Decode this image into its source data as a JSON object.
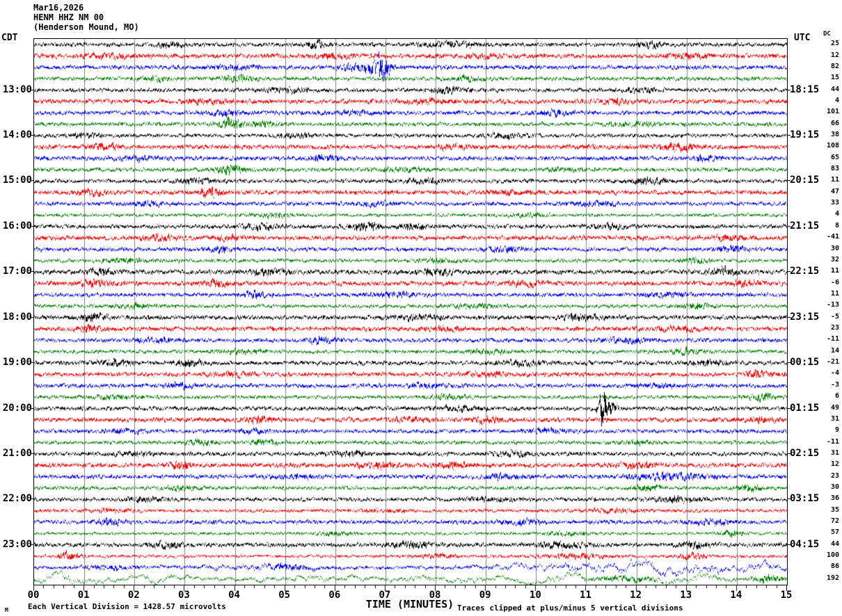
{
  "header": {
    "date": "Mar16,2026",
    "station": "HENM HHZ NM 00",
    "location": "(Henderson Mound, MO)"
  },
  "axes": {
    "left_tz": "CDT",
    "right_tz": "UTC",
    "dc_label": "DC",
    "x_title": "TIME (MINUTES)",
    "x_ticks": [
      "00",
      "01",
      "02",
      "03",
      "04",
      "05",
      "06",
      "07",
      "08",
      "09",
      "10",
      "11",
      "12",
      "13",
      "14",
      "15"
    ]
  },
  "footer": {
    "scale_note": "Each Vertical Division = 1428.57 microvolts",
    "clip_note": "Traces clipped at plus/minus 5 vertical divisions",
    "watermark": "M"
  },
  "left_labels": [
    {
      "row": 4,
      "text": "13:00"
    },
    {
      "row": 8,
      "text": "14:00"
    },
    {
      "row": 12,
      "text": "15:00"
    },
    {
      "row": 16,
      "text": "16:00"
    },
    {
      "row": 20,
      "text": "17:00"
    },
    {
      "row": 24,
      "text": "18:00"
    },
    {
      "row": 28,
      "text": "19:00"
    },
    {
      "row": 32,
      "text": "20:00"
    },
    {
      "row": 36,
      "text": "21:00"
    },
    {
      "row": 40,
      "text": "22:00"
    },
    {
      "row": 44,
      "text": "23:00"
    }
  ],
  "right_labels": [
    {
      "row": 4,
      "text": "18:15"
    },
    {
      "row": 8,
      "text": "19:15"
    },
    {
      "row": 12,
      "text": "20:15"
    },
    {
      "row": 16,
      "text": "21:15"
    },
    {
      "row": 20,
      "text": "22:15"
    },
    {
      "row": 24,
      "text": "23:15"
    },
    {
      "row": 28,
      "text": "00:15"
    },
    {
      "row": 32,
      "text": "01:15"
    },
    {
      "row": 36,
      "text": "02:15"
    },
    {
      "row": 40,
      "text": "03:15"
    },
    {
      "row": 44,
      "text": "04:15"
    }
  ],
  "colors": {
    "trace_cycle": [
      "#000000",
      "#ff0000",
      "#0000ff",
      "#007f00"
    ],
    "grid": "#808080",
    "frame": "#000000",
    "background": "#ffffff"
  },
  "chart_data": {
    "type": "line",
    "subtype": "helicorder-seismogram",
    "title": "HENM HHZ NM 00 (Henderson Mound, MO) Mar16,2026",
    "xlabel": "TIME (MINUTES)",
    "x_range_minutes": [
      0,
      15
    ],
    "minutes_per_row": 15,
    "rows_count": 48,
    "grid": "vertical lines at each minute",
    "legend_position": "none",
    "dc_offsets": [
      25,
      12,
      82,
      15,
      44,
      4,
      101,
      66,
      38,
      108,
      65,
      83,
      11,
      47,
      33,
      4,
      8,
      -41,
      30,
      32,
      11,
      -6,
      11,
      -13,
      -5,
      23,
      -11,
      14,
      -21,
      -4,
      -3,
      6,
      49,
      31,
      9,
      -11,
      31,
      12,
      23,
      30,
      36,
      35,
      72,
      57,
      44,
      100,
      86,
      192
    ],
    "rows": [
      {
        "a": 2.6,
        "b": [
          [
            2.7,
            0.2,
            3
          ],
          [
            5.6,
            0.15,
            4
          ],
          [
            8.3,
            0.4,
            3
          ],
          [
            12.3,
            0.2,
            3
          ]
        ]
      },
      {
        "a": 3.0,
        "b": [
          [
            1.5,
            0.3,
            2
          ],
          [
            6.0,
            0.3,
            2.5
          ],
          [
            9.0,
            0.2,
            2
          ],
          [
            13.0,
            0.3,
            2
          ]
        ]
      },
      {
        "a": 2.8,
        "b": [
          [
            6.9,
            0.12,
            16
          ],
          [
            6.5,
            0.3,
            4
          ],
          [
            4.0,
            0.3,
            2
          ]
        ]
      },
      {
        "a": 2.6,
        "b": [
          [
            2.4,
            0.15,
            3
          ],
          [
            4.1,
            0.2,
            3
          ],
          [
            8.6,
            0.2,
            2.5
          ]
        ]
      },
      {
        "a": 2.6,
        "b": [
          [
            5.0,
            0.3,
            2.5
          ],
          [
            8.2,
            0.25,
            3
          ],
          [
            12.1,
            0.2,
            2.5
          ]
        ]
      },
      {
        "a": 3.0,
        "b": [
          [
            3.5,
            0.3,
            2
          ],
          [
            7.8,
            0.3,
            2
          ],
          [
            11.5,
            0.25,
            2
          ]
        ]
      },
      {
        "a": 2.8,
        "b": [
          [
            3.8,
            0.2,
            3
          ],
          [
            10.4,
            0.2,
            3
          ],
          [
            6.4,
            0.3,
            2
          ]
        ]
      },
      {
        "a": 2.6,
        "b": [
          [
            3.9,
            0.15,
            6
          ],
          [
            4.6,
            0.2,
            3
          ],
          [
            12.0,
            0.3,
            2
          ]
        ]
      },
      {
        "a": 2.5,
        "b": [
          [
            1.0,
            0.2,
            2.5
          ],
          [
            5.2,
            0.3,
            2
          ],
          [
            9.4,
            0.25,
            2.5
          ]
        ]
      },
      {
        "a": 3.0,
        "b": [
          [
            1.4,
            0.2,
            3
          ],
          [
            12.8,
            0.25,
            4
          ],
          [
            8.3,
            0.2,
            2.5
          ]
        ]
      },
      {
        "a": 2.8,
        "b": [
          [
            2.0,
            0.3,
            2
          ],
          [
            5.8,
            0.2,
            3
          ],
          [
            13.4,
            0.2,
            2.5
          ]
        ]
      },
      {
        "a": 2.6,
        "b": [
          [
            3.9,
            0.2,
            5
          ],
          [
            7.3,
            0.3,
            2
          ],
          [
            10.5,
            0.25,
            2
          ]
        ]
      },
      {
        "a": 2.6,
        "b": [
          [
            3.2,
            0.3,
            2.5
          ],
          [
            7.8,
            0.3,
            2.5
          ],
          [
            12.2,
            0.25,
            3
          ]
        ]
      },
      {
        "a": 3.0,
        "b": [
          [
            3.5,
            0.15,
            4
          ],
          [
            1.2,
            0.2,
            2.5
          ],
          [
            9.5,
            0.3,
            2
          ]
        ]
      },
      {
        "a": 2.6,
        "b": [
          [
            2.2,
            0.3,
            2
          ],
          [
            6.8,
            0.3,
            2
          ],
          [
            11.2,
            0.3,
            2
          ]
        ]
      },
      {
        "a": 2.2,
        "b": [
          [
            4.8,
            0.3,
            2
          ],
          [
            9.8,
            0.3,
            1.5
          ]
        ]
      },
      {
        "a": 2.7,
        "b": [
          [
            4.5,
            0.25,
            3
          ],
          [
            6.6,
            0.25,
            3.5
          ],
          [
            7.5,
            0.2,
            3
          ],
          [
            11.5,
            0.3,
            2
          ]
        ]
      },
      {
        "a": 3.0,
        "b": [
          [
            2.5,
            0.2,
            3
          ],
          [
            3.8,
            0.2,
            2.5
          ],
          [
            13.8,
            0.25,
            2
          ]
        ]
      },
      {
        "a": 2.7,
        "b": [
          [
            3.7,
            0.2,
            3
          ],
          [
            9.4,
            0.25,
            2.5
          ],
          [
            13.9,
            0.2,
            3
          ]
        ]
      },
      {
        "a": 2.4,
        "b": [
          [
            1.8,
            0.3,
            2
          ],
          [
            8.0,
            0.3,
            2
          ],
          [
            13.2,
            0.25,
            2
          ]
        ]
      },
      {
        "a": 3.0,
        "b": [
          [
            1.3,
            0.25,
            3
          ],
          [
            4.7,
            0.3,
            2.5
          ],
          [
            8.0,
            0.3,
            2.5
          ],
          [
            13.7,
            0.25,
            3
          ]
        ]
      },
      {
        "a": 3.0,
        "b": [
          [
            1.2,
            0.2,
            3
          ],
          [
            3.6,
            0.2,
            3
          ],
          [
            9.8,
            0.25,
            2.5
          ],
          [
            14.2,
            0.2,
            3
          ]
        ]
      },
      {
        "a": 2.7,
        "b": [
          [
            4.4,
            0.2,
            3
          ],
          [
            7.2,
            0.25,
            2.5
          ],
          [
            12.5,
            0.3,
            2
          ]
        ]
      },
      {
        "a": 2.4,
        "b": [
          [
            2.0,
            0.3,
            2
          ],
          [
            8.8,
            0.3,
            2
          ],
          [
            13.2,
            0.2,
            3
          ]
        ]
      },
      {
        "a": 2.9,
        "b": [
          [
            1.2,
            0.2,
            3.5
          ],
          [
            7.6,
            0.3,
            2.5
          ],
          [
            10.9,
            0.25,
            3
          ]
        ]
      },
      {
        "a": 3.0,
        "b": [
          [
            1.1,
            0.15,
            4
          ],
          [
            8.2,
            0.25,
            2.5
          ],
          [
            12.8,
            0.3,
            2
          ]
        ]
      },
      {
        "a": 2.7,
        "b": [
          [
            2.4,
            0.3,
            2
          ],
          [
            5.7,
            0.2,
            3
          ],
          [
            11.8,
            0.3,
            2.5
          ]
        ]
      },
      {
        "a": 2.4,
        "b": [
          [
            4.2,
            0.3,
            2
          ],
          [
            9.0,
            0.3,
            2
          ],
          [
            13.0,
            0.25,
            3
          ]
        ]
      },
      {
        "a": 2.8,
        "b": [
          [
            1.6,
            0.2,
            3
          ],
          [
            3.1,
            0.2,
            3
          ],
          [
            9.7,
            0.25,
            3
          ],
          [
            13.4,
            0.25,
            2.5
          ]
        ]
      },
      {
        "a": 2.9,
        "b": [
          [
            4.0,
            0.3,
            2
          ],
          [
            9.0,
            0.3,
            2
          ],
          [
            14.4,
            0.15,
            3.5
          ]
        ]
      },
      {
        "a": 2.7,
        "b": [
          [
            2.9,
            0.2,
            3
          ],
          [
            7.8,
            0.25,
            2.5
          ],
          [
            12.4,
            0.3,
            2
          ]
        ]
      },
      {
        "a": 2.4,
        "b": [
          [
            1.5,
            0.3,
            2
          ],
          [
            8.2,
            0.3,
            2
          ],
          [
            14.5,
            0.2,
            3
          ]
        ]
      },
      {
        "a": 2.7,
        "b": [
          [
            8.5,
            0.3,
            2.5
          ],
          [
            11.32,
            0.06,
            18
          ],
          [
            11.45,
            0.15,
            6
          ]
        ]
      },
      {
        "a": 3.0,
        "b": [
          [
            4.5,
            0.25,
            2.5
          ],
          [
            7.5,
            0.25,
            2.5
          ],
          [
            9.0,
            0.2,
            2.5
          ],
          [
            14.5,
            0.2,
            3
          ]
        ]
      },
      {
        "a": 2.6,
        "b": [
          [
            1.8,
            0.3,
            2
          ],
          [
            4.4,
            0.2,
            2.5
          ],
          [
            10.2,
            0.3,
            2
          ]
        ]
      },
      {
        "a": 2.4,
        "b": [
          [
            3.3,
            0.2,
            3
          ],
          [
            4.6,
            0.2,
            3
          ],
          [
            12.0,
            0.3,
            2
          ]
        ]
      },
      {
        "a": 2.7,
        "b": [
          [
            2.0,
            0.25,
            2.5
          ],
          [
            6.3,
            0.3,
            2
          ],
          [
            9.6,
            0.25,
            3
          ]
        ]
      },
      {
        "a": 3.0,
        "b": [
          [
            2.9,
            0.15,
            3.5
          ],
          [
            6.8,
            0.25,
            2.5
          ],
          [
            8.3,
            0.2,
            3
          ],
          [
            12.0,
            0.25,
            3
          ]
        ]
      },
      {
        "a": 2.8,
        "b": [
          [
            5.2,
            0.3,
            2
          ],
          [
            9.3,
            0.25,
            2.5
          ],
          [
            12.6,
            0.5,
            3.5
          ]
        ]
      },
      {
        "a": 2.4,
        "b": [
          [
            3.0,
            0.3,
            2
          ],
          [
            12.2,
            0.2,
            3
          ],
          [
            14.2,
            0.2,
            3
          ]
        ]
      },
      {
        "a": 2.6,
        "b": [
          [
            2.2,
            0.3,
            2
          ],
          [
            9.0,
            0.3,
            2
          ],
          [
            12.8,
            0.3,
            3
          ]
        ]
      },
      {
        "a": 2.3,
        "b": [
          [
            1.5,
            0.3,
            1.5
          ],
          [
            7.0,
            0.3,
            1.5
          ],
          [
            11.5,
            0.3,
            2
          ]
        ]
      },
      {
        "a": 2.7,
        "b": [
          [
            1.5,
            0.2,
            3
          ],
          [
            9.7,
            0.25,
            3
          ],
          [
            13.5,
            0.3,
            2.5
          ]
        ]
      },
      {
        "a": 2.0,
        "b": [
          [
            6.0,
            0.3,
            1.5
          ],
          [
            13.9,
            0.15,
            3.5
          ],
          [
            10.5,
            0.3,
            1.5
          ]
        ]
      },
      {
        "a": 2.8,
        "b": [
          [
            2.6,
            0.25,
            3
          ],
          [
            7.5,
            0.3,
            2.5
          ],
          [
            10.5,
            0.3,
            3
          ],
          [
            13.2,
            0.25,
            3
          ]
        ]
      },
      {
        "a": 2.0,
        "b": [
          [
            0.7,
            0.15,
            4
          ],
          [
            8.0,
            0.3,
            2
          ],
          [
            10.8,
            0.4,
            3
          ],
          [
            13.1,
            0.2,
            3
          ]
        ]
      },
      {
        "a": 2.2,
        "b": [
          [
            1.5,
            0.3,
            2
          ],
          [
            5.0,
            0.4,
            2.5
          ]
        ],
        "sa": 1,
        "sb": [
          [
            4.2,
            0.6,
            5
          ],
          [
            9.8,
            0.6,
            7
          ],
          [
            11.5,
            0.7,
            9
          ],
          [
            13.2,
            0.6,
            8
          ],
          [
            14.5,
            0.3,
            7
          ]
        ]
      },
      {
        "a": 1.8,
        "b": [
          [
            11.8,
            0.4,
            3
          ],
          [
            14.6,
            0.2,
            4
          ]
        ],
        "sa": 3,
        "sb": [
          [
            0.6,
            0.5,
            6
          ],
          [
            2.5,
            0.5,
            3
          ],
          [
            5.5,
            0.6,
            3
          ],
          [
            8.0,
            0.6,
            3
          ],
          [
            10.5,
            0.5,
            3
          ],
          [
            13.0,
            0.5,
            3
          ]
        ]
      }
    ]
  }
}
